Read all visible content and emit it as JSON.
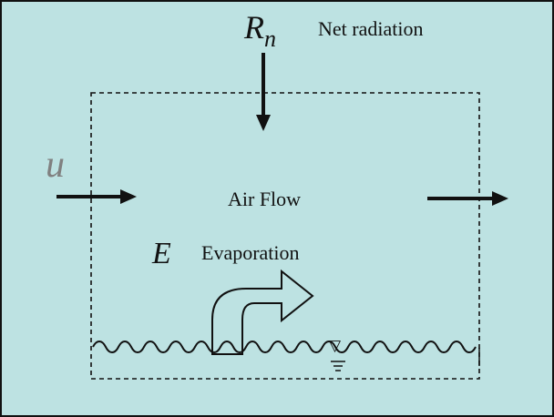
{
  "diagram": {
    "background": "#bde2e2",
    "stroke_color": "#111111",
    "u_symbol_color": "#808080",
    "net_radiation": {
      "symbol_main": "R",
      "symbol_sub": "n",
      "label": "Net radiation"
    },
    "wind": {
      "symbol": "u"
    },
    "air_flow": {
      "label": "Air Flow"
    },
    "evaporation": {
      "symbol": "E",
      "label": "Evaporation"
    },
    "water_level_marker": {
      "symbol": "▽"
    }
  }
}
